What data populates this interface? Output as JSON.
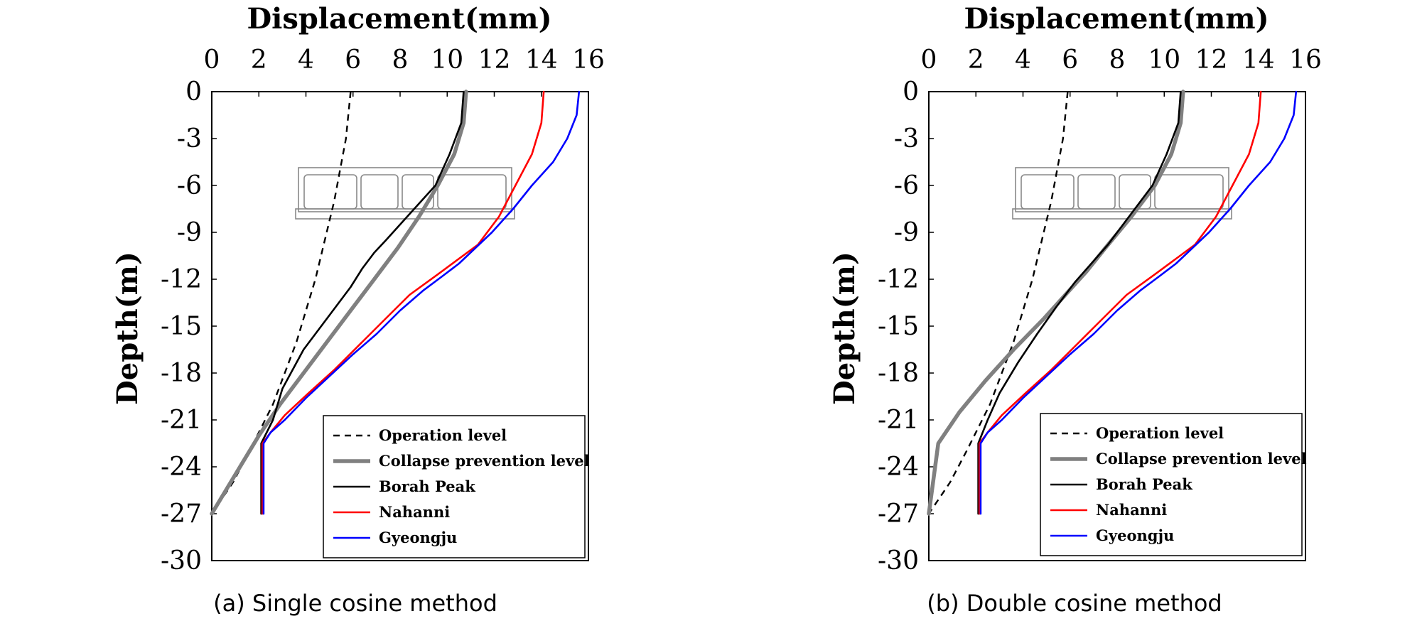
{
  "chart_data": [
    {
      "type": "line",
      "caption": "(a) Single cosine method",
      "xlabel": "Displacement(mm)",
      "ylabel": "Depth(m)",
      "xlim": [
        0,
        16
      ],
      "ylim": [
        -30,
        0
      ],
      "xticks": [
        "0",
        "2",
        "4",
        "6",
        "8",
        "10",
        "12",
        "14",
        "16"
      ],
      "yticks": [
        "0",
        "-3",
        "-6",
        "-9",
        "-12",
        "-15",
        "-18",
        "-21",
        "-24",
        "-27",
        "-30"
      ],
      "legend_position": "bottom-right",
      "series": [
        {
          "name": "Operation level",
          "color": "#000000",
          "style": "dashed",
          "points": [
            [
              5.9,
              0
            ],
            [
              5.7,
              -3
            ],
            [
              5.2,
              -7
            ],
            [
              4.4,
              -12
            ],
            [
              3.6,
              -16
            ],
            [
              2.6,
              -20
            ],
            [
              1.6,
              -23
            ],
            [
              0.9,
              -25
            ],
            [
              0,
              -27
            ]
          ]
        },
        {
          "name": "Collapse prevention level",
          "color": "#808080",
          "style": "thick",
          "points": [
            [
              10.8,
              0
            ],
            [
              10.7,
              -2
            ],
            [
              10.3,
              -4
            ],
            [
              9.6,
              -6
            ],
            [
              8.8,
              -8
            ],
            [
              7.9,
              -10
            ],
            [
              6.9,
              -12
            ],
            [
              5.9,
              -14
            ],
            [
              4.9,
              -16
            ],
            [
              3.9,
              -18
            ],
            [
              2.9,
              -20
            ],
            [
              2.0,
              -22
            ],
            [
              1.0,
              -24.5
            ],
            [
              0,
              -27
            ]
          ]
        },
        {
          "name": "Borah Peak",
          "color": "#000000",
          "style": "solid",
          "points": [
            [
              10.7,
              0
            ],
            [
              10.6,
              -2
            ],
            [
              10.1,
              -4
            ],
            [
              9.5,
              -6
            ],
            [
              8.3,
              -8
            ],
            [
              7.4,
              -9.5
            ],
            [
              6.9,
              -10.3
            ],
            [
              6.4,
              -11.3
            ],
            [
              5.9,
              -12.5
            ],
            [
              4.9,
              -14.5
            ],
            [
              3.9,
              -16.5
            ],
            [
              3.0,
              -19
            ],
            [
              2.6,
              -21
            ],
            [
              2.1,
              -22.5
            ],
            [
              2.1,
              -27
            ]
          ]
        },
        {
          "name": "Nahanni",
          "color": "#ff0000",
          "style": "solid",
          "points": [
            [
              14.1,
              0
            ],
            [
              14.0,
              -2
            ],
            [
              13.6,
              -4
            ],
            [
              12.9,
              -6
            ],
            [
              12.2,
              -8
            ],
            [
              11.3,
              -9.8
            ],
            [
              10.4,
              -10.8
            ],
            [
              9.5,
              -11.8
            ],
            [
              8.4,
              -13
            ],
            [
              7.4,
              -14.5
            ],
            [
              6.4,
              -16
            ],
            [
              5.2,
              -17.8
            ],
            [
              4.1,
              -19.3
            ],
            [
              3.1,
              -20.7
            ],
            [
              2.5,
              -21.8
            ],
            [
              2.15,
              -22.5
            ],
            [
              2.15,
              -27
            ]
          ]
        },
        {
          "name": "Gyeongju",
          "color": "#0000ff",
          "style": "solid",
          "points": [
            [
              15.6,
              0
            ],
            [
              15.5,
              -1.5
            ],
            [
              15.1,
              -3
            ],
            [
              14.5,
              -4.5
            ],
            [
              13.6,
              -6
            ],
            [
              12.8,
              -7.5
            ],
            [
              11.9,
              -9
            ],
            [
              11.2,
              -10
            ],
            [
              10.5,
              -11
            ],
            [
              9.8,
              -11.8
            ],
            [
              9.0,
              -12.7
            ],
            [
              8.0,
              -14
            ],
            [
              7.0,
              -15.5
            ],
            [
              6.0,
              -16.8
            ],
            [
              5.0,
              -18.2
            ],
            [
              4.0,
              -19.6
            ],
            [
              3.1,
              -21
            ],
            [
              2.5,
              -21.8
            ],
            [
              2.2,
              -22.5
            ],
            [
              2.2,
              -27
            ]
          ]
        }
      ]
    },
    {
      "type": "line",
      "caption": "(b) Double cosine method",
      "xlabel": "Displacement(mm)",
      "ylabel": "Depth(m)",
      "xlim": [
        0,
        16
      ],
      "ylim": [
        -30,
        0
      ],
      "xticks": [
        "0",
        "2",
        "4",
        "6",
        "8",
        "10",
        "12",
        "14",
        "16"
      ],
      "yticks": [
        "0",
        "-3",
        "-6",
        "-9",
        "-12",
        "-15",
        "-18",
        "-21",
        "-24",
        "-27",
        "-30"
      ],
      "legend_position": "bottom-right",
      "series": [
        {
          "name": "Operation level",
          "color": "#000000",
          "style": "dashed",
          "points": [
            [
              5.9,
              0
            ],
            [
              5.7,
              -3
            ],
            [
              5.2,
              -7
            ],
            [
              4.4,
              -12
            ],
            [
              3.6,
              -16
            ],
            [
              2.6,
              -20
            ],
            [
              1.6,
              -23
            ],
            [
              0.9,
              -25
            ],
            [
              0,
              -27
            ]
          ]
        },
        {
          "name": "Collapse prevention level",
          "color": "#808080",
          "style": "thick",
          "points": [
            [
              10.8,
              0
            ],
            [
              10.7,
              -2
            ],
            [
              10.3,
              -4
            ],
            [
              9.6,
              -6
            ],
            [
              8.6,
              -8
            ],
            [
              7.5,
              -10
            ],
            [
              6.7,
              -11.5
            ],
            [
              5.8,
              -13
            ],
            [
              4.9,
              -14.5
            ],
            [
              3.6,
              -16.5
            ],
            [
              2.4,
              -18.5
            ],
            [
              1.3,
              -20.5
            ],
            [
              0.4,
              -22.5
            ],
            [
              0,
              -27
            ]
          ]
        },
        {
          "name": "Borah Peak",
          "color": "#000000",
          "style": "solid",
          "points": [
            [
              10.7,
              0
            ],
            [
              10.6,
              -2
            ],
            [
              10.1,
              -4
            ],
            [
              9.5,
              -6
            ],
            [
              8.5,
              -8
            ],
            [
              7.6,
              -9.8
            ],
            [
              6.9,
              -11
            ],
            [
              6.2,
              -12.2
            ],
            [
              5.4,
              -13.8
            ],
            [
              4.6,
              -15.5
            ],
            [
              3.8,
              -17.3
            ],
            [
              3.0,
              -19.3
            ],
            [
              2.5,
              -21
            ],
            [
              2.1,
              -22.5
            ],
            [
              2.1,
              -27
            ]
          ]
        },
        {
          "name": "Nahanni",
          "color": "#ff0000",
          "style": "solid",
          "points": [
            [
              14.1,
              0
            ],
            [
              14.0,
              -2
            ],
            [
              13.6,
              -4
            ],
            [
              12.9,
              -6
            ],
            [
              12.2,
              -8
            ],
            [
              11.3,
              -9.8
            ],
            [
              10.4,
              -10.8
            ],
            [
              9.5,
              -11.8
            ],
            [
              8.4,
              -13
            ],
            [
              7.4,
              -14.5
            ],
            [
              6.4,
              -16
            ],
            [
              5.2,
              -17.8
            ],
            [
              4.1,
              -19.3
            ],
            [
              3.1,
              -20.7
            ],
            [
              2.5,
              -21.8
            ],
            [
              2.15,
              -22.5
            ],
            [
              2.15,
              -27
            ]
          ]
        },
        {
          "name": "Gyeongju",
          "color": "#0000ff",
          "style": "solid",
          "points": [
            [
              15.6,
              0
            ],
            [
              15.5,
              -1.5
            ],
            [
              15.1,
              -3
            ],
            [
              14.5,
              -4.5
            ],
            [
              13.6,
              -6
            ],
            [
              12.8,
              -7.5
            ],
            [
              11.9,
              -9
            ],
            [
              11.2,
              -10
            ],
            [
              10.5,
              -11
            ],
            [
              9.8,
              -11.8
            ],
            [
              9.0,
              -12.7
            ],
            [
              8.0,
              -14
            ],
            [
              7.0,
              -15.5
            ],
            [
              6.0,
              -16.8
            ],
            [
              5.0,
              -18.2
            ],
            [
              4.0,
              -19.6
            ],
            [
              3.1,
              -21
            ],
            [
              2.5,
              -21.8
            ],
            [
              2.2,
              -22.5
            ],
            [
              2.2,
              -27
            ]
          ]
        }
      ]
    }
  ]
}
